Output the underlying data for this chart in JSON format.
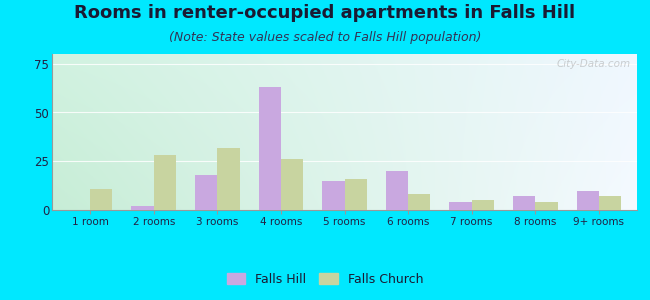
{
  "categories": [
    "1 room",
    "2 rooms",
    "3 rooms",
    "4 rooms",
    "5 rooms",
    "6 rooms",
    "7 rooms",
    "8 rooms",
    "9+ rooms"
  ],
  "falls_hill": [
    0,
    2,
    18,
    63,
    15,
    20,
    4,
    7,
    10
  ],
  "falls_church": [
    11,
    28,
    32,
    26,
    16,
    8,
    5,
    4,
    7
  ],
  "falls_hill_color": "#c9a8e0",
  "falls_church_color": "#c8d4a0",
  "title": "Rooms in renter-occupied apartments in Falls Hill",
  "subtitle": "(Note: State values scaled to Falls Hill population)",
  "ylim": [
    0,
    80
  ],
  "yticks": [
    0,
    25,
    50,
    75
  ],
  "background_outer": "#00e8ff",
  "legend_falls_hill": "Falls Hill",
  "legend_falls_church": "Falls Church",
  "title_fontsize": 13,
  "subtitle_fontsize": 9,
  "watermark": "City-Data.com",
  "bar_width": 0.35
}
